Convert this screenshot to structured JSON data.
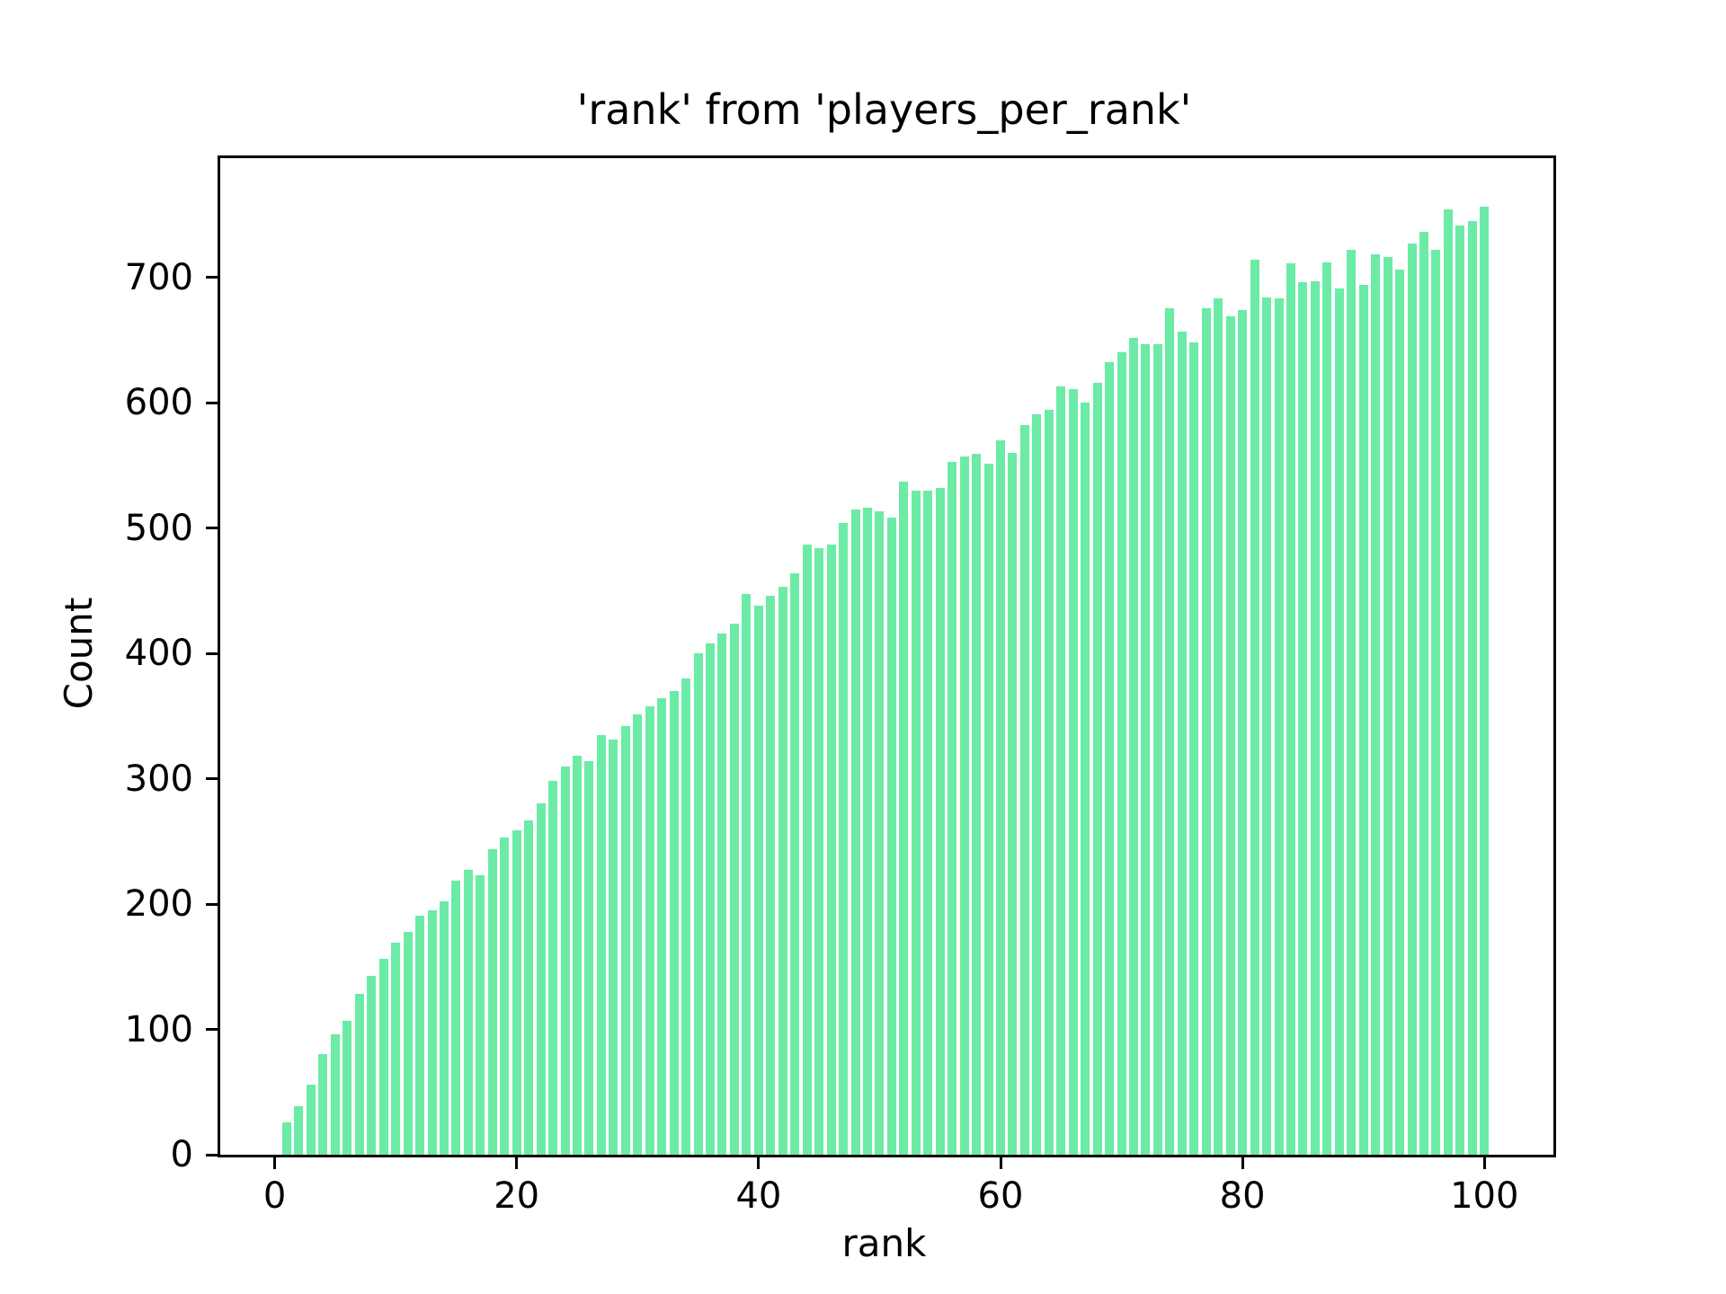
{
  "chart_data": {
    "type": "bar",
    "title": "'rank' from 'players_per_rank'",
    "xlabel": "rank",
    "ylabel": "Count",
    "x_min": 1,
    "x_max": 100,
    "values": [
      26,
      39,
      56,
      80,
      96,
      107,
      128,
      143,
      156,
      169,
      178,
      191,
      195,
      202,
      219,
      227,
      223,
      244,
      253,
      259,
      267,
      280,
      298,
      310,
      318,
      314,
      335,
      331,
      342,
      351,
      358,
      364,
      370,
      380,
      400,
      408,
      416,
      424,
      447,
      438,
      446,
      453,
      464,
      487,
      484,
      487,
      504,
      515,
      516,
      513,
      508,
      537,
      530,
      530,
      532,
      553,
      557,
      559,
      551,
      570,
      560,
      582,
      591,
      594,
      613,
      611,
      600,
      616,
      632,
      640,
      652,
      647,
      647,
      675,
      657,
      648,
      675,
      683,
      669,
      674,
      714,
      684,
      683,
      711,
      696,
      697,
      712,
      691,
      722,
      694,
      718,
      716,
      706,
      727,
      736,
      722,
      754,
      741,
      745,
      756
    ],
    "xticks": [
      0,
      20,
      40,
      60,
      80,
      100
    ],
    "yticks": [
      0,
      100,
      200,
      300,
      400,
      500,
      600,
      700
    ],
    "xlim": [
      -4.5,
      105.7
    ],
    "ylim": [
      0,
      795
    ],
    "bar_color": "#6ceba6",
    "bar_width_fraction": 0.75,
    "grid": false,
    "legend": "none"
  }
}
